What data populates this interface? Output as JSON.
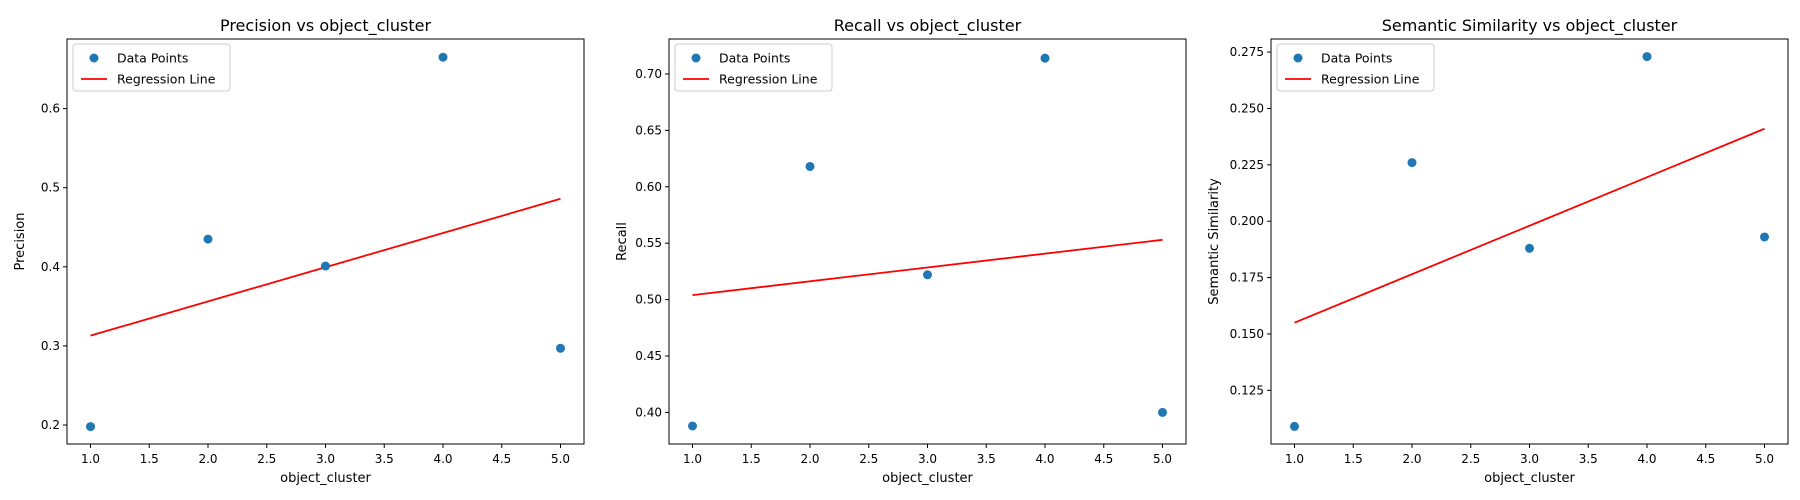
{
  "chart_data": [
    {
      "type": "scatter",
      "title": "Precision vs object_cluster",
      "xlabel": "object_cluster",
      "ylabel": "Precision",
      "xlim": [
        0.8,
        5.2
      ],
      "ylim": [
        0.176,
        0.688
      ],
      "xticks": [
        "1.0",
        "1.5",
        "2.0",
        "2.5",
        "3.0",
        "3.5",
        "4.0",
        "4.5",
        "5.0"
      ],
      "yticks": [
        "0.2",
        "0.3",
        "0.4",
        "0.5",
        "0.6"
      ],
      "legend": [
        "Data Points",
        "Regression Line"
      ],
      "legend_position": "top-left",
      "grid": false,
      "series": [
        {
          "name": "Data Points",
          "type": "scatter",
          "color": "#1f77b4",
          "x": [
            1,
            2,
            3,
            4,
            5
          ],
          "y": [
            0.198,
            0.435,
            0.401,
            0.665,
            0.297
          ]
        },
        {
          "name": "Regression Line",
          "type": "line",
          "color": "#ff0000",
          "x": [
            1,
            5
          ],
          "y": [
            0.313,
            0.486
          ]
        }
      ]
    },
    {
      "type": "scatter",
      "title": "Recall vs object_cluster",
      "xlabel": "object_cluster",
      "ylabel": "Recall",
      "xlim": [
        0.8,
        5.2
      ],
      "ylim": [
        0.372,
        0.731
      ],
      "xticks": [
        "1.0",
        "1.5",
        "2.0",
        "2.5",
        "3.0",
        "3.5",
        "4.0",
        "4.5",
        "5.0"
      ],
      "yticks": [
        "0.40",
        "0.45",
        "0.50",
        "0.55",
        "0.60",
        "0.65",
        "0.70"
      ],
      "legend": [
        "Data Points",
        "Regression Line"
      ],
      "legend_position": "top-left",
      "grid": false,
      "series": [
        {
          "name": "Data Points",
          "type": "scatter",
          "color": "#1f77b4",
          "x": [
            1,
            2,
            3,
            4,
            5
          ],
          "y": [
            0.388,
            0.618,
            0.522,
            0.714,
            0.4
          ]
        },
        {
          "name": "Regression Line",
          "type": "line",
          "color": "#ff0000",
          "x": [
            1,
            5
          ],
          "y": [
            0.504,
            0.553
          ]
        }
      ]
    },
    {
      "type": "scatter",
      "title": "Semantic Similarity vs object_cluster",
      "xlabel": "object_cluster",
      "ylabel": "Semantic Similarity",
      "xlim": [
        0.8,
        5.2
      ],
      "ylim": [
        0.1012,
        0.2808
      ],
      "xticks": [
        "1.0",
        "1.5",
        "2.0",
        "2.5",
        "3.0",
        "3.5",
        "4.0",
        "4.5",
        "5.0"
      ],
      "yticks": [
        "0.125",
        "0.150",
        "0.175",
        "0.200",
        "0.225",
        "0.250",
        "0.275"
      ],
      "legend": [
        "Data Points",
        "Regression Line"
      ],
      "legend_position": "top-left",
      "grid": false,
      "series": [
        {
          "name": "Data Points",
          "type": "scatter",
          "color": "#1f77b4",
          "x": [
            1,
            2,
            3,
            4,
            5
          ],
          "y": [
            0.109,
            0.226,
            0.188,
            0.273,
            0.193
          ]
        },
        {
          "name": "Regression Line",
          "type": "line",
          "color": "#ff0000",
          "x": [
            1,
            5
          ],
          "y": [
            0.155,
            0.241
          ]
        }
      ]
    }
  ]
}
